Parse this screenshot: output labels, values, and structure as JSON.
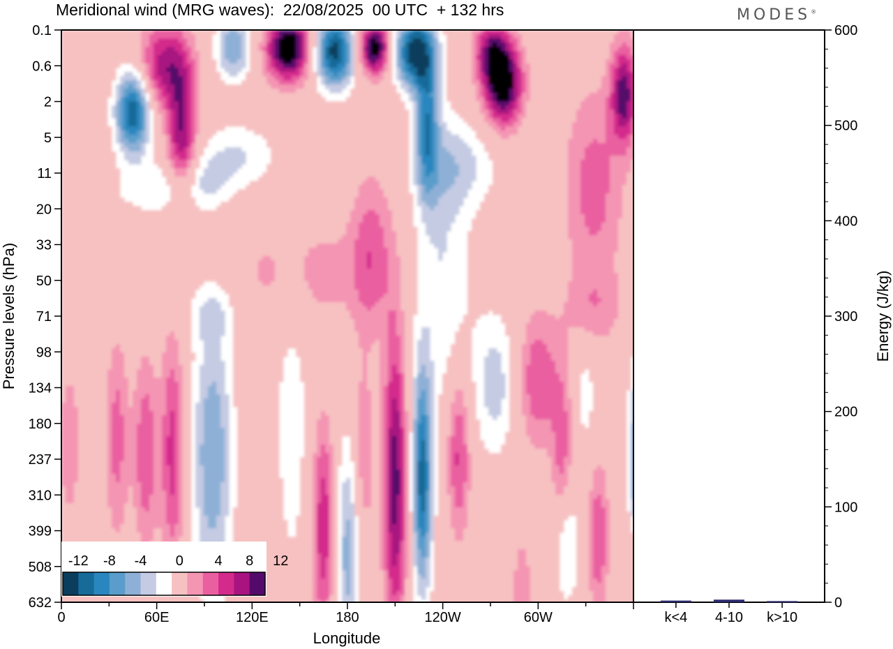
{
  "header": {
    "title": "Meridional wind (MRG waves):  22/08/2025  00 UTC  + 132 hrs",
    "brand": "MODES",
    "brand_mark": "®"
  },
  "chart_data": [
    {
      "type": "heatmap",
      "name": "meridional-wind-contour",
      "xlabel": "Longitude",
      "ylabel": "Pressure levels (hPa)",
      "x_ticks": [
        "0",
        "60E",
        "120E",
        "180",
        "120W",
        "60W"
      ],
      "y_ticks": [
        "0.1",
        "0.6",
        "2",
        "5",
        "11",
        "20",
        "33",
        "50",
        "71",
        "98",
        "134",
        "180",
        "237",
        "310",
        "399",
        "508",
        "632"
      ],
      "colorbar": {
        "labels": [
          "-12",
          "-8",
          "-4",
          "0",
          "4",
          "8",
          "12"
        ],
        "levels": [
          -14,
          -12,
          -10,
          -8,
          -6,
          -4,
          -2,
          2,
          4,
          6,
          8,
          10,
          12,
          14
        ],
        "colors": [
          "#0b3d5c",
          "#166b99",
          "#2a86be",
          "#5a9dcb",
          "#8fb0d6",
          "#c5cbe3",
          "#ffffff",
          "#f7c1c1",
          "#f495b3",
          "#ea5fa0",
          "#d42a8c",
          "#a81380",
          "#540a6b"
        ]
      },
      "blobs": [
        {
          "lon": 45,
          "lev": 2.3,
          "w": 12,
          "h": 1.3,
          "v": -14
        },
        {
          "lon": 65,
          "lev": 1.0,
          "w": 18,
          "h": 1.3,
          "v": 9
        },
        {
          "lon": 76,
          "lev": 3.0,
          "w": 10,
          "h": 2.0,
          "v": 10
        },
        {
          "lon": 108,
          "lev": 0.5,
          "w": 12,
          "h": 1.0,
          "v": -8
        },
        {
          "lon": 143,
          "lev": 0.5,
          "w": 15,
          "h": 1.0,
          "v": 15
        },
        {
          "lon": 172,
          "lev": 0.6,
          "w": 14,
          "h": 1.1,
          "v": -15
        },
        {
          "lon": 197,
          "lev": 0.5,
          "w": 11,
          "h": 0.8,
          "v": 14
        },
        {
          "lon": 222,
          "lev": 0.6,
          "w": 14,
          "h": 1.1,
          "v": -15
        },
        {
          "lon": 230,
          "lev": 2.6,
          "w": 8,
          "h": 2.2,
          "v": -10
        },
        {
          "lon": 270,
          "lev": 0.6,
          "w": 12,
          "h": 1.0,
          "v": 8
        },
        {
          "lon": 278,
          "lev": 1.5,
          "w": 13,
          "h": 1.3,
          "v": 14
        },
        {
          "lon": 354,
          "lev": 1.8,
          "w": 9,
          "h": 1.5,
          "v": 11
        },
        {
          "lon": 335,
          "lev": 4.4,
          "w": 20,
          "h": 3.0,
          "v": 5
        },
        {
          "lon": 110,
          "lev": 3.5,
          "w": 28,
          "h": 1.0,
          "v": -4
        },
        {
          "lon": 60,
          "lev": 4.5,
          "w": 35,
          "h": 0.8,
          "v": -3
        },
        {
          "lon": 150,
          "lev": 6.8,
          "w": 50,
          "h": 1.7,
          "v": 3
        },
        {
          "lon": 195,
          "lev": 6.2,
          "w": 14,
          "h": 2.4,
          "v": 5
        },
        {
          "lon": 240,
          "lev": 6.6,
          "w": 20,
          "h": 4.8,
          "v": -4
        },
        {
          "lon": 250,
          "lev": 3.8,
          "w": 28,
          "h": 1.3,
          "v": -4
        },
        {
          "lon": 95,
          "lev": 7.9,
          "w": 20,
          "h": 0.9,
          "v": -3
        },
        {
          "lon": 85,
          "lev": 4.3,
          "w": 25,
          "h": 0.9,
          "v": -3
        },
        {
          "lon": 335,
          "lev": 7.8,
          "w": 20,
          "h": 1.2,
          "v": 3
        },
        {
          "lon": 35,
          "lev": 11.4,
          "w": 8,
          "h": 3.0,
          "v": 5
        },
        {
          "lon": 53,
          "lev": 11.8,
          "w": 8,
          "h": 2.8,
          "v": 6
        },
        {
          "lon": 70,
          "lev": 11.8,
          "w": 8,
          "h": 3.5,
          "v": 7
        },
        {
          "lon": 95,
          "lev": 11.9,
          "w": 14,
          "h": 4.2,
          "v": -8
        },
        {
          "lon": 145,
          "lev": 11.0,
          "w": 13,
          "h": 5.5,
          "v": -3
        },
        {
          "lon": 165,
          "lev": 13.9,
          "w": 8,
          "h": 3.2,
          "v": 8
        },
        {
          "lon": 180,
          "lev": 14.6,
          "w": 9,
          "h": 3.5,
          "v": -7
        },
        {
          "lon": 210,
          "lev": 12.6,
          "w": 8,
          "h": 4.6,
          "v": 11
        },
        {
          "lon": 190,
          "lev": 12.0,
          "w": 7,
          "h": 3.0,
          "v": 4
        },
        {
          "lon": 227,
          "lev": 12.6,
          "w": 7,
          "h": 3.4,
          "v": -13
        },
        {
          "lon": 250,
          "lev": 11.8,
          "w": 8,
          "h": 2.5,
          "v": 7
        },
        {
          "lon": 273,
          "lev": 9.9,
          "w": 15,
          "h": 2.2,
          "v": -5
        },
        {
          "lon": 300,
          "lev": 9.8,
          "w": 14,
          "h": 2.0,
          "v": 6
        },
        {
          "lon": 315,
          "lev": 11.8,
          "w": 7,
          "h": 2.5,
          "v": 5
        },
        {
          "lon": 330,
          "lev": 10.2,
          "w": 7,
          "h": 1.7,
          "v": -3
        },
        {
          "lon": 318,
          "lev": 14.4,
          "w": 8,
          "h": 1.8,
          "v": -5
        },
        {
          "lon": 338,
          "lev": 14.2,
          "w": 7,
          "h": 2.2,
          "v": 6
        },
        {
          "lon": 362,
          "lev": 12.2,
          "w": 6,
          "h": 3.0,
          "v": -9
        },
        {
          "lon": 360,
          "lev": 14.8,
          "w": 6,
          "h": 1.4,
          "v": 4
        },
        {
          "lon": 5,
          "lev": 11.6,
          "w": 7,
          "h": 2.2,
          "v": 4
        },
        {
          "lon": 290,
          "lev": 15.6,
          "w": 6,
          "h": 1.5,
          "v": 4
        }
      ]
    },
    {
      "type": "bar",
      "name": "energy-bar-chart",
      "categories": [
        "k<4",
        "4-10",
        "k>10"
      ],
      "values": [
        1,
        2,
        0.5
      ],
      "ylabel": "Energy (J/kg)",
      "ylim": [
        0,
        600
      ],
      "y_ticks": [
        0,
        100,
        200,
        300,
        400,
        500,
        600
      ],
      "bar_color": "#2a2a6e"
    }
  ]
}
